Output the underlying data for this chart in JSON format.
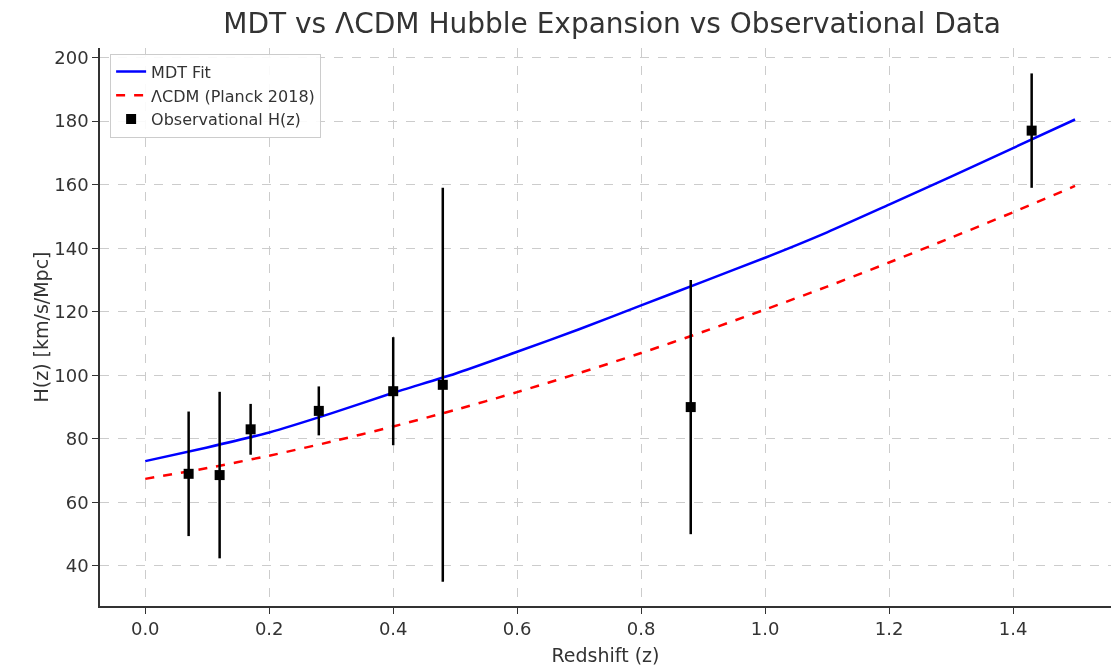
{
  "chart_data": {
    "type": "line",
    "title": "MDT vs ΛCDM Hubble Expansion vs Observational Data",
    "xlabel": "Redshift (z)",
    "ylabel": "H(z) [km/s/Mpc]",
    "series": [
      {
        "name": "MDT Fit",
        "color": "#0000ff",
        "line_style": "solid",
        "x": [
          0,
          0.1,
          0.2,
          0.3,
          0.4,
          0.5,
          0.6,
          0.7,
          0.8,
          0.9,
          1.0,
          1.1,
          1.2,
          1.3,
          1.4,
          1.5
        ],
        "values": [
          73,
          77.3,
          82,
          88,
          94.5,
          100.5,
          107.4,
          114.5,
          122,
          129.5,
          137,
          145,
          153.7,
          162.5,
          171.5,
          180.5
        ]
      },
      {
        "name": "ΛCDM (Planck 2018)",
        "type": "line",
        "color": "#ff0000",
        "line_style": "dashed",
        "x": [
          0,
          0.1,
          0.2,
          0.3,
          0.4,
          0.5,
          0.6,
          0.7,
          0.8,
          0.9,
          1.0,
          1.1,
          1.2,
          1.3,
          1.4,
          1.5
        ],
        "values": [
          67.4,
          70.8,
          74.7,
          79.1,
          83.9,
          89.1,
          94.7,
          100.7,
          107,
          113.7,
          120.7,
          127.9,
          135.5,
          143.3,
          151.3,
          159.6
        ]
      },
      {
        "name": "Observational H(z)",
        "type": "scatter",
        "color": "#000000",
        "marker": "square",
        "x": [
          0.07,
          0.12,
          0.17,
          0.28,
          0.4,
          0.48,
          0.88,
          1.43
        ],
        "values": [
          69,
          68.6,
          83,
          88.8,
          95,
          97,
          90,
          177
        ],
        "errors": [
          19.6,
          26.2,
          8,
          7.7,
          17,
          62,
          40,
          18
        ]
      }
    ],
    "xlim": [
      -0.073,
      1.558
    ],
    "xticks": [
      {
        "value": 0,
        "label": "0.0"
      },
      0.2,
      0.4,
      0.6,
      0.8,
      {
        "value": 1,
        "label": "1.0"
      },
      1.2,
      1.4
    ],
    "ylim": [
      27.4,
      203
    ],
    "yticks": [
      40,
      60,
      80,
      100,
      120,
      140,
      160,
      180,
      200
    ],
    "grid": true,
    "legend": "top left"
  }
}
